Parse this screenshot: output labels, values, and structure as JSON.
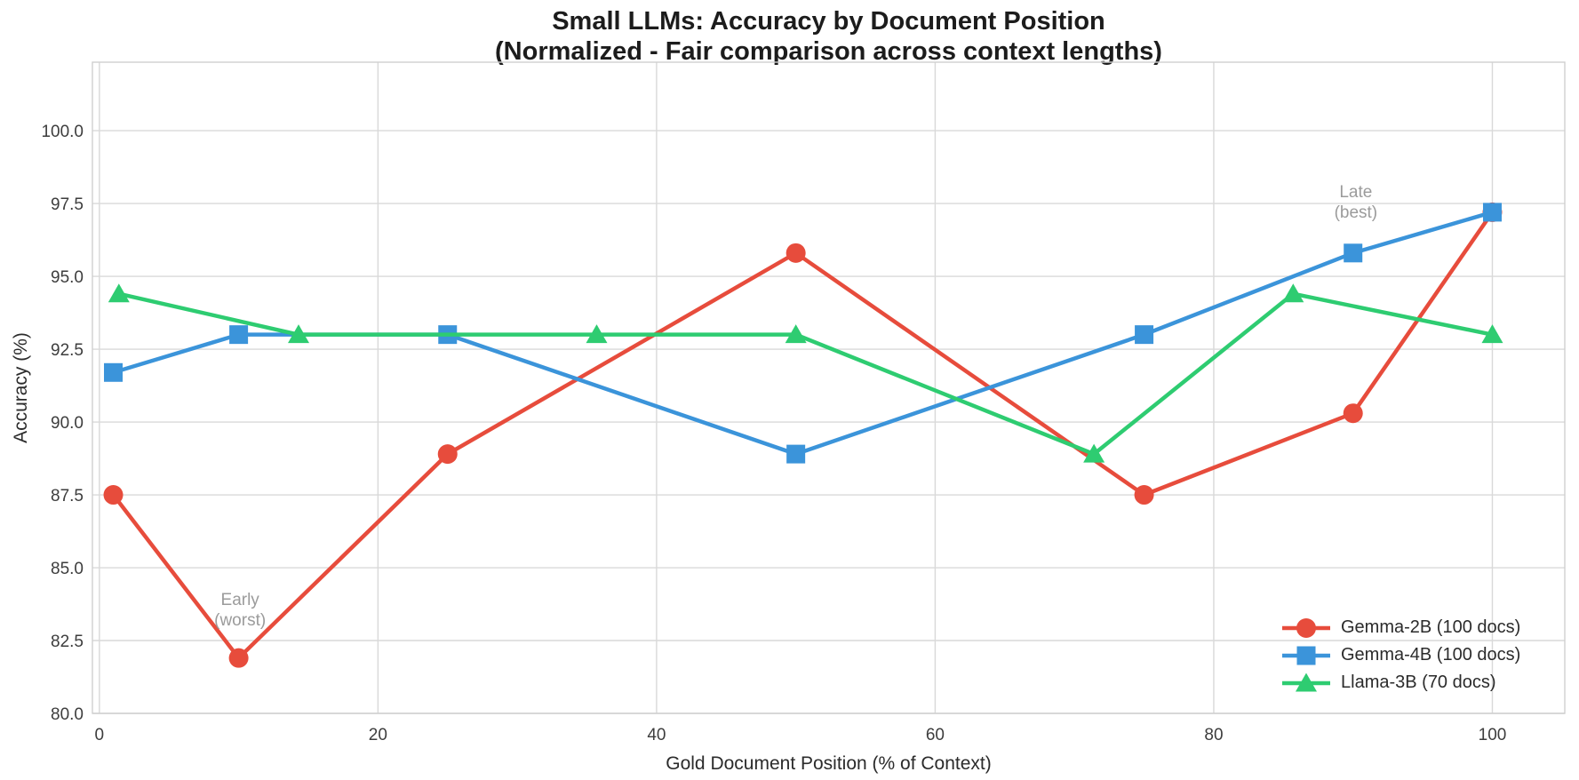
{
  "title": {
    "line1": "Small LLMs: Accuracy by Document Position",
    "line2": "(Normalized - Fair comparison across context lengths)"
  },
  "chart_data": {
    "type": "line",
    "title": "Small LLMs: Accuracy by Document Position (Normalized - Fair comparison across context lengths)",
    "xlabel": "Gold Document Position (% of Context)",
    "ylabel": "Accuracy (%)",
    "xlim": [
      -0.5,
      105.2
    ],
    "ylim": [
      80.0,
      102.35
    ],
    "grid": true,
    "legend_position": "lower right",
    "xticks": {
      "values": [
        0,
        20,
        40,
        60,
        80,
        100
      ],
      "labels": [
        "0",
        "20",
        "40",
        "60",
        "80",
        "100"
      ]
    },
    "yticks": {
      "values": [
        80,
        82.5,
        85,
        87.5,
        90,
        92.5,
        95,
        97.5,
        100
      ],
      "labels": [
        "80.0",
        "82.5",
        "85.0",
        "87.5",
        "90.0",
        "92.5",
        "95.0",
        "97.5",
        "100.0"
      ]
    },
    "series": [
      {
        "name": "Gemma-2B (100 docs)",
        "color": "#e74c3c",
        "marker": "circle",
        "x": [
          1,
          10,
          25,
          50,
          75,
          90,
          100
        ],
        "y": [
          87.5,
          81.9,
          88.9,
          95.8,
          87.5,
          90.3,
          97.2
        ]
      },
      {
        "name": "Gemma-4B (100 docs)",
        "color": "#3b94da",
        "marker": "square",
        "x": [
          1,
          10,
          25,
          50,
          75,
          90,
          100
        ],
        "y": [
          91.7,
          93.0,
          93.0,
          88.9,
          93.0,
          95.8,
          97.2
        ]
      },
      {
        "name": "Llama-3B (70 docs)",
        "color": "#2ecc71",
        "marker": "triangle",
        "x": [
          1.4,
          14.3,
          35.7,
          50,
          71.4,
          85.7,
          100
        ],
        "y": [
          94.4,
          93.0,
          93.0,
          93.0,
          88.9,
          94.4,
          93.0
        ]
      }
    ],
    "annotations": [
      {
        "lines": [
          "Early",
          "(worst)"
        ],
        "x": 10.1,
        "y": 83.9,
        "color": "#9b9b9b"
      },
      {
        "lines": [
          "Late",
          "(best)"
        ],
        "x": 90.2,
        "y": 97.9,
        "color": "#9b9b9b"
      }
    ],
    "style": {
      "grid_color": "#d9d9d9",
      "spine_color": "#cfcfcf",
      "tick_label_color": "#3d3d3d",
      "axis_label_color": "#2b2b2b"
    }
  }
}
